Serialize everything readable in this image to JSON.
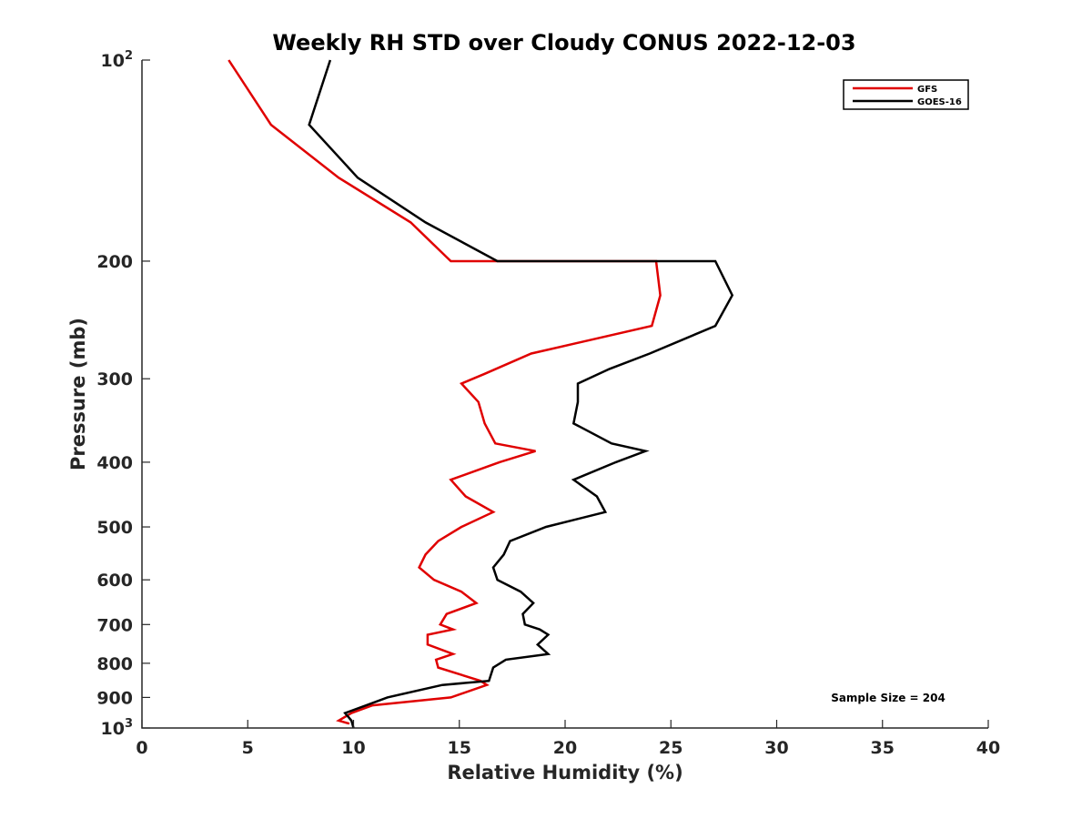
{
  "chart_data": {
    "type": "line",
    "title": "Weekly RH STD over Cloudy CONUS 2022-12-03",
    "xlabel": "Relative Humidity (%)",
    "ylabel": "Pressure (mb)",
    "xlim": [
      0,
      40
    ],
    "ylim": [
      100,
      1000
    ],
    "y_scale": "log",
    "y_reversed": true,
    "grid": false,
    "legend_position": "top-right",
    "x_ticks": [
      0,
      5,
      10,
      15,
      20,
      25,
      30,
      35,
      40
    ],
    "x_tick_labels": [
      "0",
      "5",
      "10",
      "15",
      "20",
      "25",
      "30",
      "35",
      "40"
    ],
    "y_ticks": [
      {
        "value": 100,
        "base": "10",
        "exp": "2"
      },
      {
        "value": 200,
        "label": "200"
      },
      {
        "value": 300,
        "label": "300"
      },
      {
        "value": 400,
        "label": "400"
      },
      {
        "value": 500,
        "label": "500"
      },
      {
        "value": 600,
        "label": "600"
      },
      {
        "value": 700,
        "label": "700"
      },
      {
        "value": 800,
        "label": "800"
      },
      {
        "value": 900,
        "label": "900"
      },
      {
        "value": 1000,
        "base": "10",
        "exp": "3"
      }
    ],
    "annotation": "Sample Size = 204",
    "series": [
      {
        "name": "GFS",
        "color": "#e00000",
        "points": [
          [
            4.1,
            100
          ],
          [
            6.1,
            125
          ],
          [
            9.3,
            150
          ],
          [
            12.7,
            175
          ],
          [
            14.6,
            200
          ],
          [
            24.3,
            200
          ],
          [
            24.5,
            225
          ],
          [
            24.1,
            250
          ],
          [
            18.4,
            275
          ],
          [
            16.2,
            295
          ],
          [
            15.1,
            305
          ],
          [
            15.9,
            325
          ],
          [
            16.2,
            350
          ],
          [
            16.7,
            375
          ],
          [
            18.6,
            385
          ],
          [
            16.9,
            400
          ],
          [
            14.6,
            425
          ],
          [
            15.3,
            450
          ],
          [
            16.6,
            475
          ],
          [
            15.1,
            500
          ],
          [
            14.0,
            525
          ],
          [
            13.4,
            550
          ],
          [
            13.1,
            575
          ],
          [
            13.8,
            600
          ],
          [
            15.1,
            625
          ],
          [
            15.8,
            650
          ],
          [
            14.4,
            675
          ],
          [
            14.1,
            700
          ],
          [
            14.7,
            712
          ],
          [
            13.5,
            725
          ],
          [
            13.5,
            750
          ],
          [
            14.7,
            775
          ],
          [
            13.9,
            790
          ],
          [
            14.0,
            812
          ],
          [
            16.0,
            850
          ],
          [
            16.3,
            862
          ],
          [
            14.6,
            900
          ],
          [
            10.9,
            925
          ],
          [
            9.9,
            950
          ],
          [
            9.3,
            975
          ],
          [
            9.8,
            985
          ]
        ]
      },
      {
        "name": "GOES-16",
        "color": "#000000",
        "points": [
          [
            8.9,
            100
          ],
          [
            7.9,
            125
          ],
          [
            10.2,
            150
          ],
          [
            13.4,
            175
          ],
          [
            16.8,
            200
          ],
          [
            27.1,
            200
          ],
          [
            27.9,
            225
          ],
          [
            27.1,
            250
          ],
          [
            24.0,
            275
          ],
          [
            22.1,
            290
          ],
          [
            20.6,
            305
          ],
          [
            20.6,
            325
          ],
          [
            20.4,
            350
          ],
          [
            22.2,
            375
          ],
          [
            23.8,
            385
          ],
          [
            22.4,
            400
          ],
          [
            20.4,
            425
          ],
          [
            21.5,
            450
          ],
          [
            21.9,
            475
          ],
          [
            19.1,
            500
          ],
          [
            17.4,
            525
          ],
          [
            17.1,
            550
          ],
          [
            16.6,
            575
          ],
          [
            16.8,
            600
          ],
          [
            17.9,
            625
          ],
          [
            18.5,
            650
          ],
          [
            18.0,
            675
          ],
          [
            18.1,
            700
          ],
          [
            18.8,
            712
          ],
          [
            19.2,
            725
          ],
          [
            18.7,
            750
          ],
          [
            19.2,
            775
          ],
          [
            17.2,
            790
          ],
          [
            16.6,
            812
          ],
          [
            16.4,
            850
          ],
          [
            14.2,
            862
          ],
          [
            11.6,
            900
          ],
          [
            10.6,
            925
          ],
          [
            9.6,
            950
          ],
          [
            9.9,
            975
          ],
          [
            10.0,
            1000
          ]
        ]
      }
    ]
  }
}
